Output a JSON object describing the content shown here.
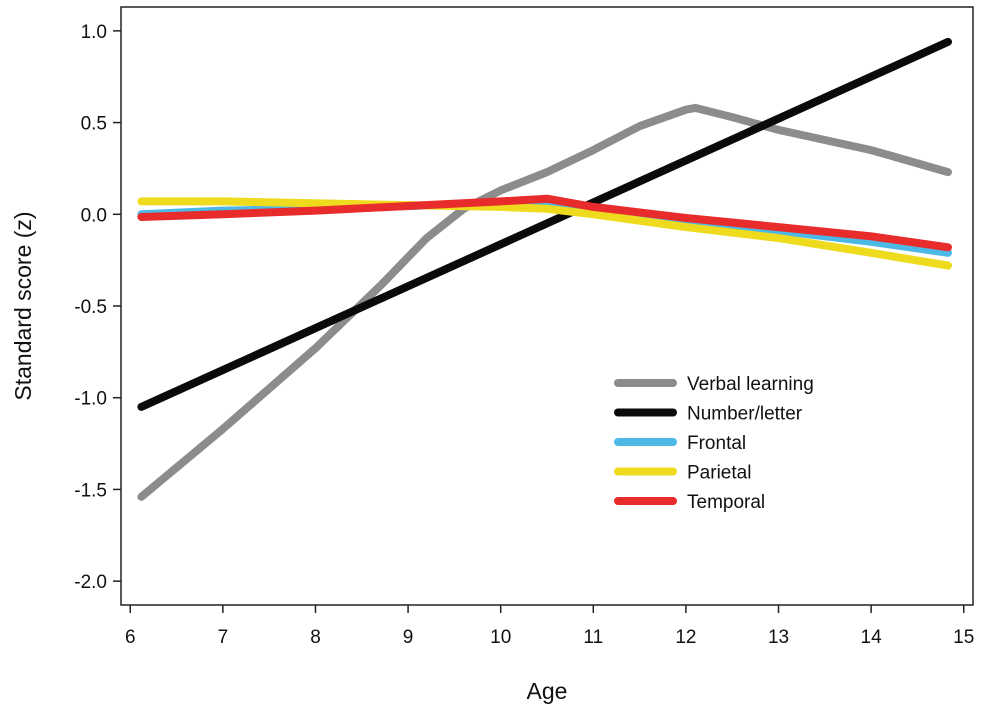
{
  "chart_data": {
    "type": "line",
    "title": "",
    "xlabel": "Age",
    "ylabel": "Standard score (z)",
    "xlim": [
      5.9,
      15.1
    ],
    "ylim": [
      -2.13,
      1.13
    ],
    "x_ticks": [
      6,
      7,
      8,
      9,
      10,
      11,
      12,
      13,
      14,
      15
    ],
    "y_ticks": [
      1.0,
      0.5,
      0.0,
      -0.5,
      -1.0,
      -1.5,
      -2.0
    ],
    "y_tick_labels": [
      "1.0",
      "0.5",
      "0.0",
      "-0.5",
      "-1.0",
      "-1.5",
      "-2.0"
    ],
    "grid": false,
    "legend_position": "lower-right",
    "series": [
      {
        "name": "Verbal learning",
        "color": "#8c8c8c",
        "points": [
          [
            6.12,
            -1.54
          ],
          [
            7.0,
            -1.17
          ],
          [
            8.0,
            -0.73
          ],
          [
            8.7,
            -0.39
          ],
          [
            9.2,
            -0.13
          ],
          [
            9.6,
            0.03
          ],
          [
            10.0,
            0.13
          ],
          [
            10.5,
            0.23
          ],
          [
            11.0,
            0.35
          ],
          [
            11.5,
            0.48
          ],
          [
            12.0,
            0.57
          ],
          [
            12.1,
            0.58
          ],
          [
            12.5,
            0.53
          ],
          [
            13.0,
            0.46
          ],
          [
            14.0,
            0.35
          ],
          [
            14.83,
            0.23
          ]
        ]
      },
      {
        "name": "Number/letter",
        "color": "#0a0a0a",
        "points": [
          [
            6.12,
            -1.05
          ],
          [
            14.83,
            0.94
          ]
        ]
      },
      {
        "name": "Frontal",
        "color": "#4cb8e6",
        "points": [
          [
            6.12,
            0.0
          ],
          [
            7.0,
            0.02
          ],
          [
            8.0,
            0.03
          ],
          [
            9.0,
            0.045
          ],
          [
            10.0,
            0.06
          ],
          [
            10.5,
            0.07
          ],
          [
            11.0,
            0.02
          ],
          [
            12.0,
            -0.04
          ],
          [
            13.0,
            -0.09
          ],
          [
            14.0,
            -0.15
          ],
          [
            14.83,
            -0.21
          ]
        ]
      },
      {
        "name": "Parietal",
        "color": "#eedb1e",
        "points": [
          [
            6.12,
            0.07
          ],
          [
            7.0,
            0.07
          ],
          [
            8.0,
            0.06
          ],
          [
            9.0,
            0.05
          ],
          [
            10.0,
            0.04
          ],
          [
            10.5,
            0.03
          ],
          [
            11.0,
            0.0
          ],
          [
            12.0,
            -0.07
          ],
          [
            13.0,
            -0.13
          ],
          [
            14.0,
            -0.21
          ],
          [
            14.83,
            -0.28
          ]
        ]
      },
      {
        "name": "Temporal",
        "color": "#e82b2b",
        "points": [
          [
            6.12,
            -0.015
          ],
          [
            7.0,
            0.0
          ],
          [
            8.0,
            0.02
          ],
          [
            9.0,
            0.045
          ],
          [
            10.0,
            0.07
          ],
          [
            10.5,
            0.085
          ],
          [
            11.0,
            0.04
          ],
          [
            12.0,
            -0.02
          ],
          [
            13.0,
            -0.07
          ],
          [
            14.0,
            -0.12
          ],
          [
            14.83,
            -0.18
          ]
        ]
      }
    ]
  }
}
